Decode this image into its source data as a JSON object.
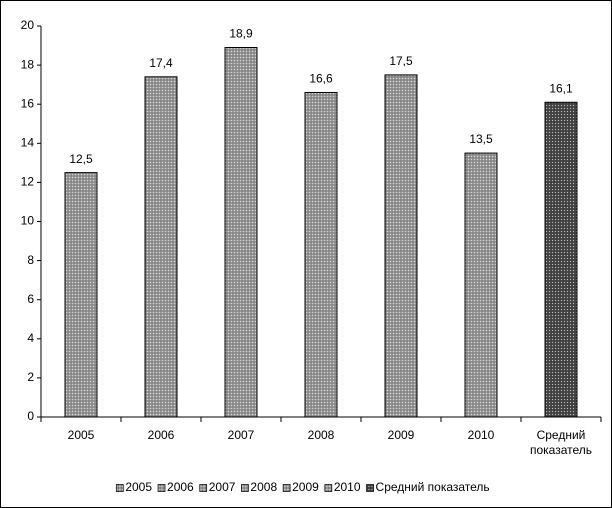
{
  "chart_data": {
    "type": "bar",
    "categories": [
      "2005",
      "2006",
      "2007",
      "2008",
      "2009",
      "2010",
      "Средний показатель"
    ],
    "values": [
      12.5,
      17.4,
      18.9,
      16.6,
      17.5,
      13.5,
      16.1
    ],
    "value_labels": [
      "12,5",
      "17,4",
      "18,9",
      "16,6",
      "17,5",
      "13,5",
      "16,1"
    ],
    "colors": [
      "#9a9a9a",
      "#9a9a9a",
      "#9a9a9a",
      "#9a9a9a",
      "#9a9a9a",
      "#9a9a9a",
      "#4a4a4a"
    ],
    "ylim": [
      0,
      20
    ],
    "yticks": [
      0,
      2,
      4,
      6,
      8,
      10,
      12,
      14,
      16,
      18,
      20
    ],
    "legend": "bottom"
  }
}
